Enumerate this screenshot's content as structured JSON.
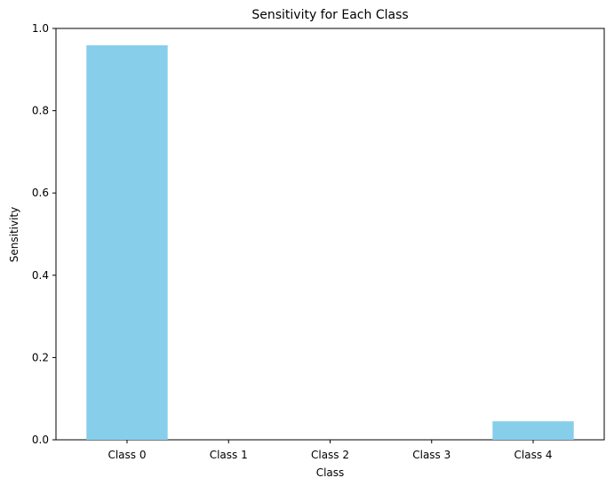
{
  "chart_data": {
    "type": "bar",
    "title": "Sensitivity for Each Class",
    "xlabel": "Class",
    "ylabel": "Sensitivity",
    "categories": [
      "Class 0",
      "Class 1",
      "Class 2",
      "Class 3",
      "Class 4"
    ],
    "values": [
      0.959,
      0.0,
      0.0,
      0.0,
      0.045
    ],
    "ylim": [
      0,
      1.0
    ],
    "yticks": [
      "0.0",
      "0.2",
      "0.4",
      "0.6",
      "0.8",
      "1.0"
    ],
    "grid": false,
    "bar_color": "#87ceeb",
    "axis_color": "#000000"
  }
}
